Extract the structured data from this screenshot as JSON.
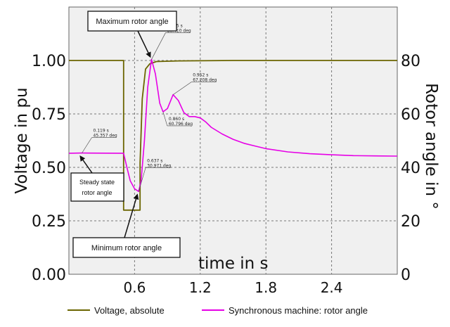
{
  "chart_data": {
    "type": "line",
    "x_axis": {
      "label": "time in s",
      "range": [
        0,
        3.0
      ],
      "ticks": [
        0.6,
        1.2,
        1.8,
        2.4
      ],
      "tick_labels": [
        "0.6",
        "1.2",
        "1.8",
        "2.4"
      ]
    },
    "y_axis_left": {
      "label": "Voltage in pu",
      "range": [
        0,
        1.25
      ],
      "ticks": [
        0,
        0.25,
        0.5,
        0.75,
        1.0
      ],
      "tick_labels": [
        "0.00",
        "0.25",
        "0.50",
        "0.75",
        "1.00"
      ]
    },
    "y_axis_right": {
      "label": "Rotor angle in °",
      "range": [
        0,
        100
      ],
      "ticks": [
        0,
        20,
        40,
        60,
        80
      ],
      "tick_labels": [
        "0",
        "20",
        "40",
        "60",
        "80"
      ]
    },
    "grid": true,
    "legend_position": "bottom",
    "series": [
      {
        "name": "Voltage, absolute",
        "axis": "left",
        "color": "#6b6500",
        "x": [
          0,
          0.5,
          0.5,
          0.65,
          0.65,
          0.67,
          0.7,
          0.74,
          0.8,
          1.0,
          1.5,
          2.0,
          3.0
        ],
        "y": [
          1.0,
          1.0,
          0.3,
          0.3,
          0.52,
          0.82,
          0.96,
          0.985,
          0.995,
          0.998,
          1.0,
          1.0,
          1.0
        ]
      },
      {
        "name": "Synchronous machine: rotor angle",
        "axis": "right",
        "color": "#e600e6",
        "x": [
          0,
          0.119,
          0.5,
          0.53,
          0.56,
          0.6,
          0.637,
          0.66,
          0.69,
          0.72,
          0.755,
          0.79,
          0.83,
          0.86,
          0.9,
          0.952,
          1.0,
          1.05,
          1.1,
          1.15,
          1.2,
          1.25,
          1.3,
          1.4,
          1.5,
          1.6,
          1.7,
          1.8,
          2.0,
          2.2,
          2.4,
          2.6,
          2.8,
          3.0
        ],
        "y": [
          45.3,
          45.357,
          45.3,
          40.0,
          35.0,
          32.0,
          30.971,
          35.0,
          50.0,
          70.0,
          80.41,
          75.0,
          64.0,
          60.796,
          62.0,
          67.208,
          65.0,
          60.5,
          59.0,
          59.0,
          58.5,
          57.0,
          55.0,
          52.5,
          50.5,
          49.0,
          48.0,
          47.0,
          45.8,
          45.1,
          44.7,
          44.4,
          44.3,
          44.2
        ]
      }
    ],
    "data_labels": [
      {
        "x": 0.119,
        "y_right": 45.357,
        "line1": "0.119 s",
        "line2": "45.357 deg"
      },
      {
        "x": 0.637,
        "y_right": 30.971,
        "line1": "0.637 s",
        "line2": "30.971 deg"
      },
      {
        "x": 0.755,
        "y_right": 80.41,
        "line1": "0.755 s",
        "line2": "80.410 deg"
      },
      {
        "x": 0.86,
        "y_right": 60.796,
        "line1": "0.860 s",
        "line2": "60.796 deg"
      },
      {
        "x": 0.952,
        "y_right": 67.208,
        "line1": "0.952 s",
        "line2": "67.208 deg"
      }
    ],
    "annotations": [
      {
        "text": "Maximum rotor angle",
        "target_x": 0.755,
        "target_y_right": 80.41
      },
      {
        "text_lines": [
          "Steady state",
          "rotor angle"
        ],
        "target_x": 0.119,
        "target_y_right": 45.357
      },
      {
        "text": "Minimum rotor angle",
        "target_x": 0.637,
        "target_y_right": 30.971
      }
    ]
  }
}
